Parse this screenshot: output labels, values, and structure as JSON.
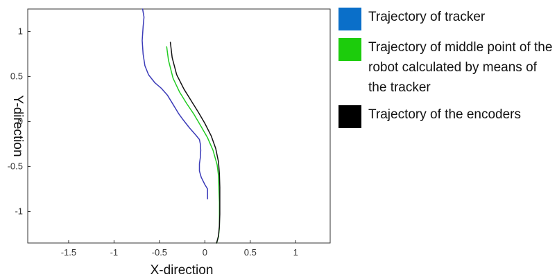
{
  "chart_data": {
    "type": "line",
    "title": "",
    "xlabel": "X-direction",
    "ylabel": "Y-direction",
    "xlim": [
      -1.95,
      1.38
    ],
    "ylim": [
      -1.35,
      1.25
    ],
    "xticks": [
      -1.5,
      -1,
      -0.5,
      0,
      0.5,
      1
    ],
    "xtick_labels": [
      "-1.5",
      "-1",
      "-0.5",
      "0",
      "0.5",
      "1"
    ],
    "yticks": [
      -1,
      -0.5,
      0,
      0.5,
      1
    ],
    "ytick_labels": [
      "-1",
      "-0.5",
      "0",
      "0.5",
      "1"
    ],
    "grid": false,
    "legend_position": "right",
    "series": [
      {
        "name": "Trajectory of tracker",
        "color": "#3b3bb8",
        "legend_color": "#0a6fc9",
        "x": [
          -0.685,
          -0.67,
          -0.68,
          -0.69,
          -0.68,
          -0.66,
          -0.62,
          -0.55,
          -0.48,
          -0.41,
          -0.35,
          -0.29,
          -0.24,
          -0.17,
          -0.1,
          -0.06,
          -0.05,
          -0.045,
          -0.05,
          -0.06,
          -0.06,
          -0.04,
          0.0,
          0.03,
          0.03
        ],
        "y": [
          1.25,
          1.16,
          1.05,
          0.9,
          0.75,
          0.62,
          0.52,
          0.43,
          0.37,
          0.29,
          0.19,
          0.09,
          0.02,
          -0.07,
          -0.15,
          -0.2,
          -0.25,
          -0.32,
          -0.4,
          -0.47,
          -0.55,
          -0.62,
          -0.7,
          -0.75,
          -0.86
        ]
      },
      {
        "name": "Trajectory of middle point of the robot calculated by means of the tracker",
        "color": "#22cc22",
        "legend_color": "#1ccc0c",
        "x": [
          -0.42,
          -0.4,
          -0.35,
          -0.28,
          -0.2,
          -0.12,
          -0.05,
          0.03,
          0.09,
          0.135,
          0.15,
          0.155,
          0.16,
          0.16,
          0.16,
          0.15,
          0.13
        ],
        "y": [
          0.83,
          0.68,
          0.48,
          0.33,
          0.2,
          0.08,
          -0.04,
          -0.18,
          -0.32,
          -0.48,
          -0.6,
          -0.75,
          -0.9,
          -1.05,
          -1.18,
          -1.28,
          -1.35
        ]
      },
      {
        "name": "Trajectory of the encoders",
        "color": "#111111",
        "legend_color": "#000000",
        "x": [
          -0.38,
          -0.36,
          -0.31,
          -0.23,
          -0.15,
          -0.07,
          0.0,
          0.07,
          0.12,
          0.15,
          0.16,
          0.165,
          0.165,
          0.165,
          0.16,
          0.15,
          0.13
        ],
        "y": [
          0.88,
          0.71,
          0.52,
          0.36,
          0.23,
          0.1,
          -0.02,
          -0.16,
          -0.3,
          -0.45,
          -0.58,
          -0.73,
          -0.88,
          -1.03,
          -1.16,
          -1.27,
          -1.35
        ]
      }
    ]
  }
}
